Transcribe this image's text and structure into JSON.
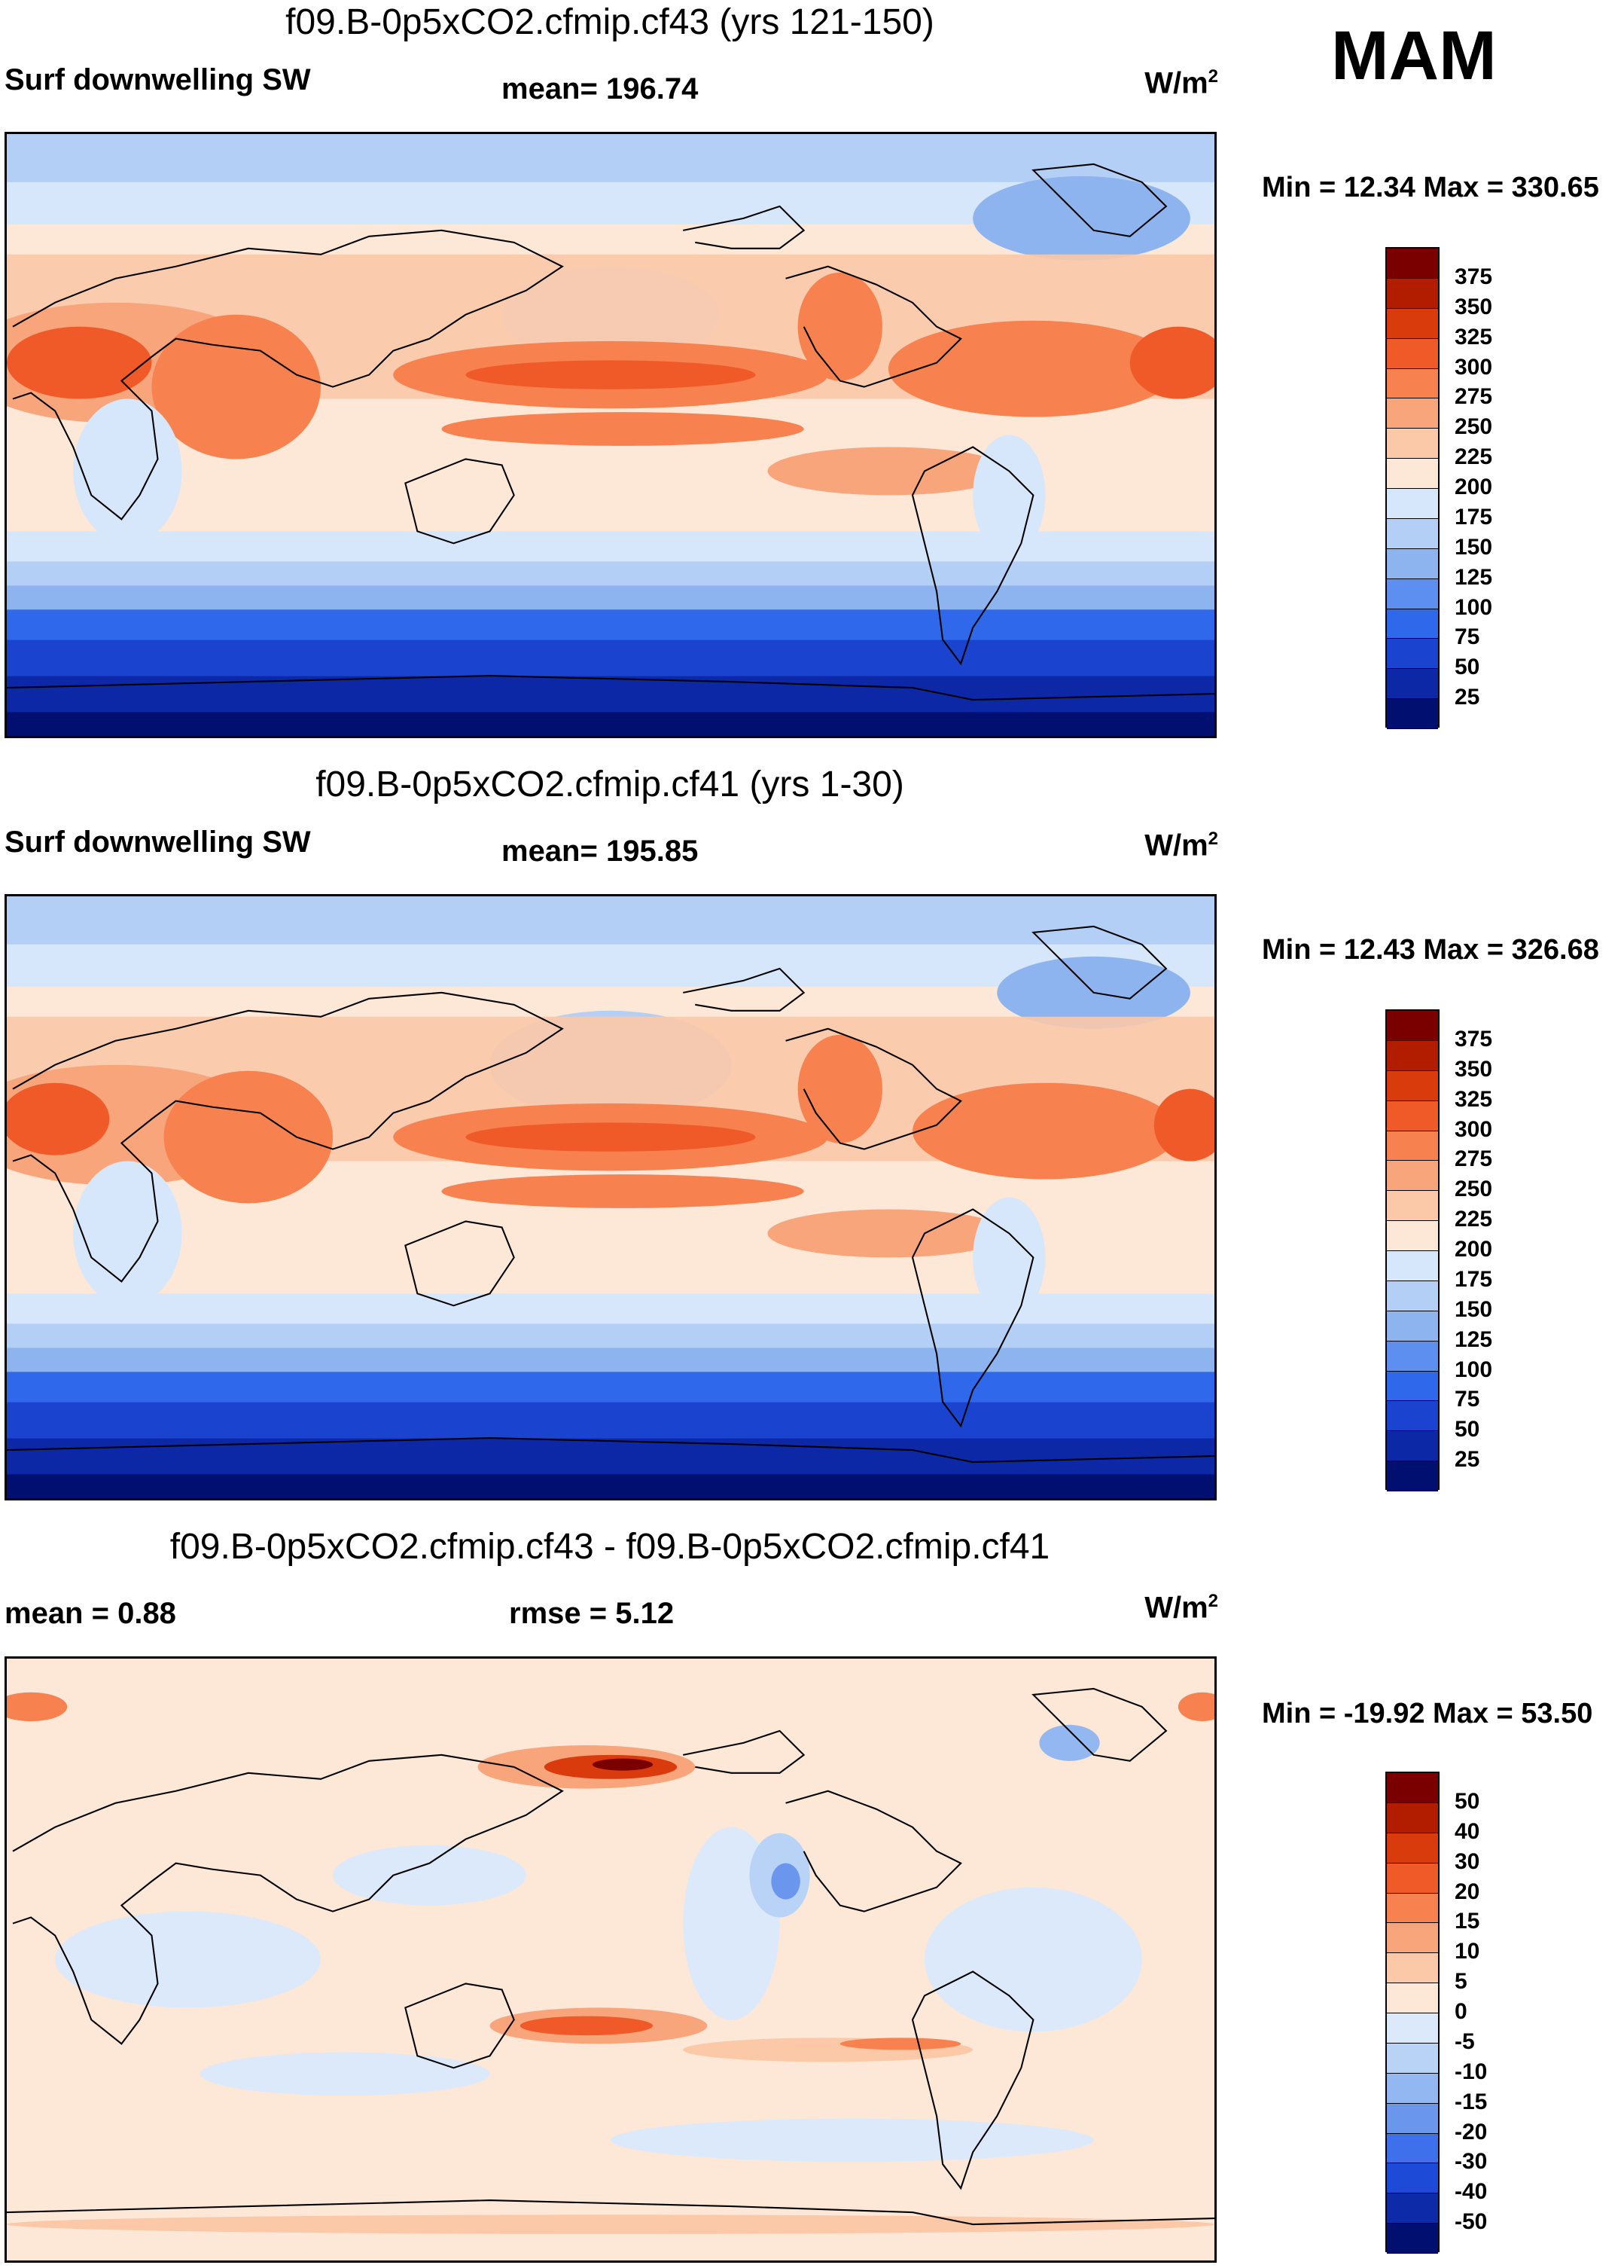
{
  "season": "MAM",
  "panels": [
    {
      "title": "f09.B-0p5xCO2.cfmip.cf43 (yrs 121-150)",
      "variable": "Surf downwelling SW",
      "stat1": "mean= 196.74",
      "stat2": "",
      "units": "W/m",
      "units_sup": "2",
      "minmax": "Min =  12.34 Max = 330.65",
      "colorbar": {
        "labels": [
          "375",
          "350",
          "325",
          "300",
          "275",
          "250",
          "225",
          "200",
          "175",
          "150",
          "125",
          "100",
          "75",
          "50",
          "25"
        ],
        "colors": [
          "#7a0000",
          "#b21d00",
          "#d93b0d",
          "#f05a28",
          "#f7814f",
          "#f9a57c",
          "#fbc8a8",
          "#fde7d6",
          "#d6e7fb",
          "#b3cff6",
          "#8db4ef",
          "#5d8ff0",
          "#2f68ea",
          "#1a44cf",
          "#0d28a6",
          "#000f70"
        ]
      }
    },
    {
      "title": "f09.B-0p5xCO2.cfmip.cf41 (yrs 1-30)",
      "variable": "Surf downwelling SW",
      "stat1": "mean= 195.85",
      "stat2": "",
      "units": "W/m",
      "units_sup": "2",
      "minmax": "Min =  12.43 Max = 326.68",
      "colorbar": {
        "labels": [
          "375",
          "350",
          "325",
          "300",
          "275",
          "250",
          "225",
          "200",
          "175",
          "150",
          "125",
          "100",
          "75",
          "50",
          "25"
        ],
        "colors": [
          "#7a0000",
          "#b21d00",
          "#d93b0d",
          "#f05a28",
          "#f7814f",
          "#f9a57c",
          "#fbc8a8",
          "#fde7d6",
          "#d6e7fb",
          "#b3cff6",
          "#8db4ef",
          "#5d8ff0",
          "#2f68ea",
          "#1a44cf",
          "#0d28a6",
          "#000f70"
        ]
      }
    },
    {
      "title": "f09.B-0p5xCO2.cfmip.cf43 - f09.B-0p5xCO2.cfmip.cf41",
      "variable": "",
      "stat1": "mean =   0.88",
      "stat2": "rmse =   5.12",
      "units": "W/m",
      "units_sup": "2",
      "minmax": "Min = -19.92 Max =  53.50",
      "colorbar": {
        "labels": [
          "50",
          "40",
          "30",
          "20",
          "15",
          "10",
          "5",
          "0",
          "-5",
          "-10",
          "-15",
          "-20",
          "-30",
          "-40",
          "-50"
        ],
        "colors": [
          "#7a0000",
          "#b21d00",
          "#d93b0d",
          "#f05a28",
          "#f7814f",
          "#f9a57c",
          "#fbc8a8",
          "#fde7d6",
          "#dce9fb",
          "#b9d3f7",
          "#93b8f1",
          "#6a96ee",
          "#3d70ea",
          "#1d4bd8",
          "#0d2aa8",
          "#000f70"
        ]
      }
    }
  ]
}
